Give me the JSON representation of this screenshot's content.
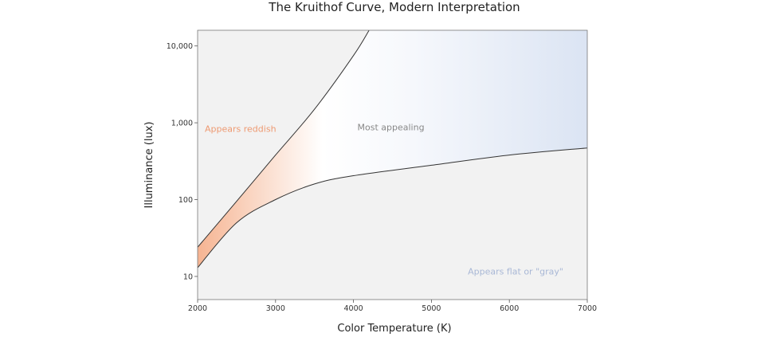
{
  "chart_data": {
    "type": "area",
    "title": "The Kruithof Curve, Modern Interpretation",
    "xlabel": "Color Temperature (K)",
    "ylabel": "Illuminance (lux)",
    "xlim": [
      2000,
      7000
    ],
    "ylim": [
      5,
      16000
    ],
    "y_scale": "log",
    "grid": false,
    "x_ticks": [
      2000,
      3000,
      4000,
      5000,
      6000,
      7000
    ],
    "x_tick_labels": [
      "2000",
      "3000",
      "4000",
      "5000",
      "6000",
      "7000"
    ],
    "y_ticks": [
      10,
      100,
      1000,
      10000
    ],
    "y_tick_labels": [
      "10",
      "100",
      "1,000",
      "10,000"
    ],
    "series": [
      {
        "x": [
          2000,
          2500,
          3000,
          3500,
          4000,
          4200
        ],
        "y": [
          24,
          95,
          380,
          1500,
          7500,
          16000
        ]
      },
      {
        "x": [
          2000,
          2500,
          3000,
          3500,
          4000,
          5000,
          6000,
          7000
        ],
        "y": [
          13,
          50,
          100,
          160,
          205,
          280,
          380,
          470
        ]
      }
    ],
    "regions": [
      {
        "label": "Appears reddish",
        "x": 2550,
        "y": 760,
        "color": "#ee9a72"
      },
      {
        "label": "Most appealing",
        "x": 4480,
        "y": 800,
        "color": "#888888"
      },
      {
        "label": "Appears flat or \"gray\"",
        "x": 6080,
        "y": 10.6,
        "color": "#a9b8d6"
      }
    ],
    "colors": {
      "outside": "#f2f2f2",
      "warm": "#f6b492",
      "cool": "#dbe4f3",
      "curve": "#333333"
    }
  }
}
